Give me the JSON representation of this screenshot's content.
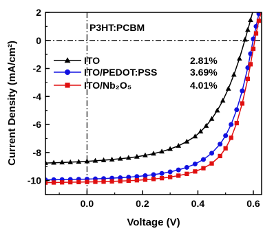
{
  "chart_data": {
    "type": "line",
    "title": "P3HT:PCBM",
    "xlabel": "Voltage (V)",
    "ylabel": "Current Density (mA/cm²)",
    "xlim": [
      -0.15,
      0.63
    ],
    "ylim": [
      -11,
      2
    ],
    "x_ticks": [
      0.0,
      0.2,
      0.4,
      0.6
    ],
    "x_tick_labels": [
      "0.0",
      "0.2",
      "0.4",
      "0.6"
    ],
    "y_ticks": [
      2,
      0,
      -2,
      -4,
      -6,
      -8,
      -10
    ],
    "y_tick_labels": [
      "2",
      "0",
      "-2",
      "-4",
      "-6",
      "-8",
      "-10"
    ],
    "reference_lines": {
      "y": 0,
      "x": 0,
      "style": "dash-dot"
    },
    "legend_position": "upper-left",
    "series": [
      {
        "name": "ITO",
        "efficiency": "2.81%",
        "color": "#000000",
        "marker": "triangle-up",
        "x": [
          -0.15,
          -0.12,
          -0.09,
          -0.06,
          -0.03,
          0.0,
          0.03,
          0.06,
          0.09,
          0.12,
          0.15,
          0.18,
          0.21,
          0.24,
          0.27,
          0.3,
          0.33,
          0.36,
          0.39,
          0.41,
          0.43,
          0.45,
          0.47,
          0.49,
          0.51,
          0.53,
          0.55,
          0.57,
          0.58,
          0.59,
          0.6
        ],
        "y": [
          -8.75,
          -8.73,
          -8.71,
          -8.69,
          -8.66,
          -8.63,
          -8.59,
          -8.55,
          -8.5,
          -8.44,
          -8.38,
          -8.3,
          -8.2,
          -8.08,
          -7.93,
          -7.75,
          -7.52,
          -7.22,
          -6.85,
          -6.5,
          -6.1,
          -5.6,
          -5.0,
          -4.3,
          -3.45,
          -2.45,
          -1.3,
          0.05,
          0.75,
          1.45,
          2.2
        ]
      },
      {
        "name": "ITO/PEDOT:PSS",
        "efficiency": "3.69%",
        "color": "#1010e0",
        "marker": "circle",
        "x": [
          -0.15,
          -0.12,
          -0.09,
          -0.06,
          -0.03,
          0.0,
          0.03,
          0.06,
          0.09,
          0.12,
          0.15,
          0.18,
          0.21,
          0.24,
          0.27,
          0.3,
          0.33,
          0.36,
          0.39,
          0.42,
          0.45,
          0.48,
          0.5,
          0.52,
          0.54,
          0.56,
          0.58,
          0.59,
          0.6,
          0.61,
          0.62
        ],
        "y": [
          -9.95,
          -9.94,
          -9.93,
          -9.92,
          -9.91,
          -9.9,
          -9.88,
          -9.86,
          -9.83,
          -9.8,
          -9.76,
          -9.71,
          -9.65,
          -9.58,
          -9.49,
          -9.38,
          -9.24,
          -9.06,
          -8.82,
          -8.5,
          -8.05,
          -7.4,
          -6.8,
          -6.0,
          -4.95,
          -3.6,
          -1.95,
          -0.95,
          0.1,
          1.0,
          1.9
        ]
      },
      {
        "name": "ITO/Nb₂O₅",
        "efficiency": "4.01%",
        "color": "#e01010",
        "marker": "square",
        "x": [
          -0.15,
          -0.12,
          -0.09,
          -0.06,
          -0.03,
          0.0,
          0.03,
          0.06,
          0.09,
          0.12,
          0.15,
          0.18,
          0.21,
          0.24,
          0.27,
          0.3,
          0.33,
          0.36,
          0.39,
          0.42,
          0.45,
          0.48,
          0.5,
          0.52,
          0.54,
          0.56,
          0.58,
          0.59,
          0.6,
          0.61,
          0.62,
          0.63
        ],
        "y": [
          -10.15,
          -10.14,
          -10.13,
          -10.12,
          -10.11,
          -10.1,
          -10.09,
          -10.08,
          -10.06,
          -10.04,
          -10.01,
          -9.98,
          -9.94,
          -9.89,
          -9.83,
          -9.75,
          -9.65,
          -9.52,
          -9.35,
          -9.12,
          -8.78,
          -8.25,
          -7.7,
          -6.95,
          -5.9,
          -4.5,
          -2.75,
          -1.7,
          -0.6,
          0.5,
          1.4,
          2.1
        ]
      }
    ]
  }
}
